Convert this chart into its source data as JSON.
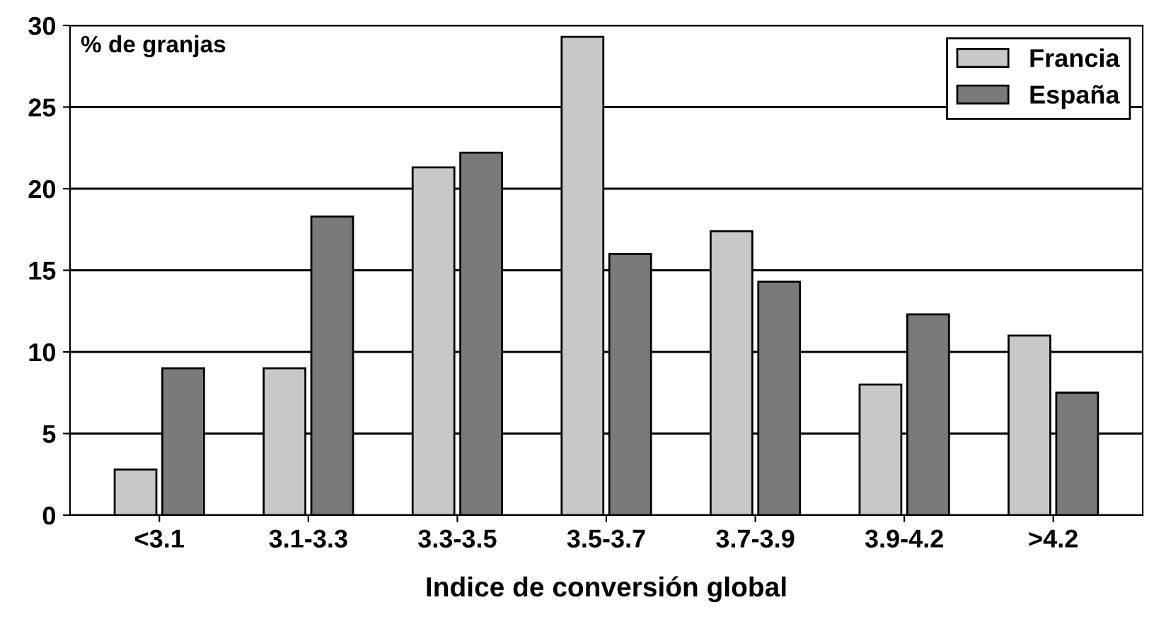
{
  "chart_data": {
    "type": "bar",
    "ylabel": "% de granjas",
    "xlabel": "Indice de conversión global",
    "categories": [
      "<3.1",
      "3.1-3.3",
      "3.3-3.5",
      "3.5-3.7",
      "3.7-3.9",
      "3.9-4.2",
      ">4.2"
    ],
    "series": [
      {
        "name": "Francia",
        "color": "#c8c8c8",
        "values": [
          2.8,
          9.0,
          21.3,
          29.3,
          17.4,
          8.0,
          11.0
        ]
      },
      {
        "name": "España",
        "color": "#7a7a7a",
        "values": [
          9.0,
          18.3,
          22.2,
          16.0,
          14.3,
          12.3,
          7.5
        ]
      }
    ],
    "ylim": [
      0,
      30
    ],
    "yticks": [
      0,
      5,
      10,
      15,
      20,
      25,
      30
    ],
    "grid": "y",
    "legend": "top right"
  }
}
